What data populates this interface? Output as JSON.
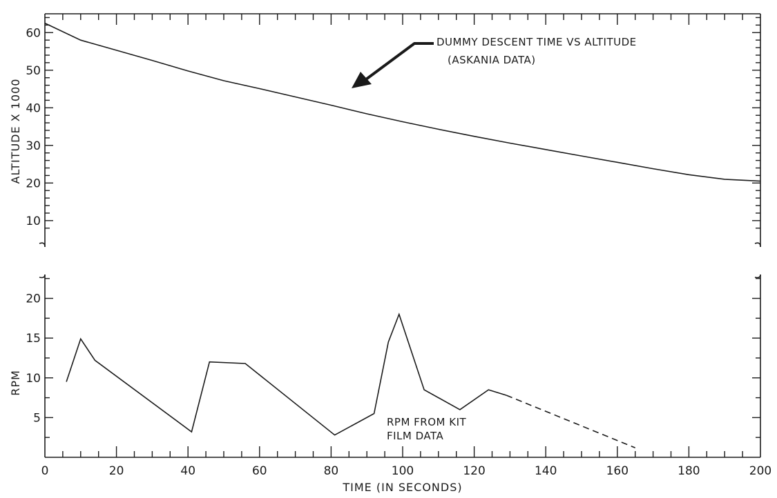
{
  "chart_data": [
    {
      "type": "line",
      "ylabel": "ALTITUDE X 1000",
      "xlabel": "",
      "xlim": [
        0,
        200
      ],
      "ylim": [
        3,
        65
      ],
      "yticks": [
        10,
        20,
        30,
        40,
        50,
        60
      ],
      "yminor_step": 2,
      "annotation": [
        "DUMMY DESCENT TIME VS ALTITUDE",
        "(ASKANIA DATA)"
      ],
      "series": [
        {
          "x": [
            0,
            10,
            20,
            30,
            40,
            50,
            60,
            70,
            80,
            90,
            100,
            110,
            120,
            130,
            140,
            150,
            160,
            170,
            180,
            190,
            200
          ],
          "y": [
            62.5,
            58.0,
            55.3,
            52.6,
            49.8,
            47.2,
            45.1,
            42.9,
            40.7,
            38.4,
            36.3,
            34.3,
            32.4,
            30.6,
            28.9,
            27.2,
            25.5,
            23.8,
            22.2,
            21.0,
            20.5
          ],
          "line_style": "solid"
        }
      ]
    },
    {
      "type": "line",
      "ylabel": "RPM",
      "xlabel": "TIME (IN SECONDS)",
      "xlim": [
        0,
        200
      ],
      "ylim": [
        0,
        23
      ],
      "yticks": [
        5,
        10,
        15,
        20
      ],
      "yminor_step": 2.5,
      "xticks": [
        0,
        20,
        40,
        60,
        80,
        100,
        120,
        140,
        160,
        180,
        200
      ],
      "xminor_step": 5,
      "annotation": [
        "RPM FROM KIT",
        "FILM DATA"
      ],
      "series": [
        {
          "x": [
            6,
            10,
            14,
            41,
            46,
            56,
            81,
            92,
            96,
            99,
            106,
            116,
            124,
            129
          ],
          "y": [
            9.5,
            14.9,
            12.2,
            3.2,
            12.0,
            11.8,
            2.8,
            5.5,
            14.5,
            18.0,
            8.5,
            6.0,
            8.5,
            7.8
          ],
          "line_style": "solid"
        },
        {
          "x": [
            129,
            165
          ],
          "y": [
            7.8,
            1.2
          ],
          "line_style": "dashed"
        }
      ]
    }
  ]
}
